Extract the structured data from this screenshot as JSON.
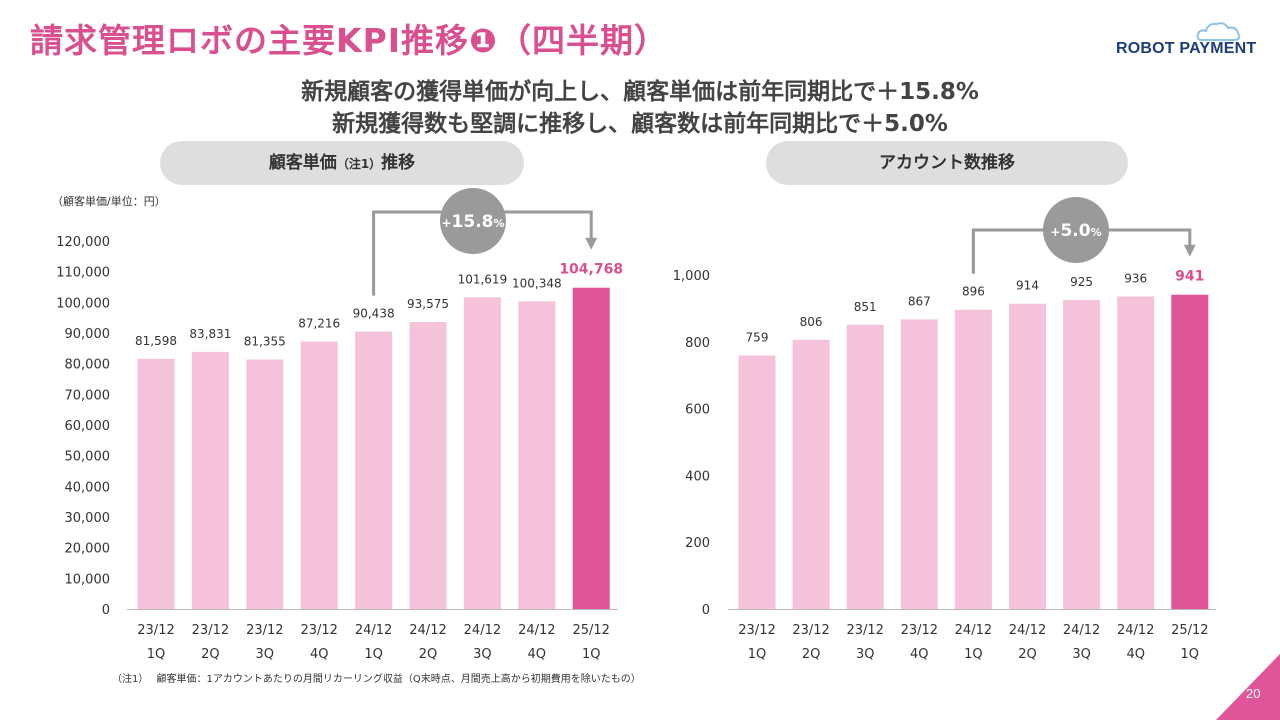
{
  "title_main": "請求管理ロボの主要KPI推移",
  "title_num": "❶",
  "title_suffix": "（四半期）",
  "logo": {
    "text": "ROBOT PAYMENT"
  },
  "subtitle_line1": "新規顧客の獲得単価が向上し、顧客単価は前年同期比で＋15.8%",
  "subtitle_line2": "新規獲得数も堅調に推移し、顧客数は前年同期比で＋5.0%",
  "left_panel": {
    "title": "顧客単価",
    "note_ref": "（注1）",
    "title_suffix": "推移"
  },
  "right_panel": {
    "title": "アカウント数推移"
  },
  "unit_label": "（顧客単価/単位：円）",
  "footnote": "（注1）　 顧客単価：1アカウントあたりの月間リカーリング収益（Q末時点、月間売上高から初期費用を除いたもの）",
  "page_number": "20",
  "colors": {
    "accent": "#d94f8f",
    "bar_light": "#f4c3d9",
    "bar_highlight": "#e05597",
    "pill_bg": "#dedede",
    "bracket": "#9a9a9a",
    "circle": "#9a9a9a"
  },
  "chart_data": [
    {
      "type": "bar",
      "title": "顧客単価（注1）推移",
      "ylabel": "（顧客単価/単位：円）",
      "categories": [
        "23/12\n1Q",
        "23/12\n2Q",
        "23/12\n3Q",
        "23/12\n4Q",
        "24/12\n1Q",
        "24/12\n2Q",
        "24/12\n3Q",
        "24/12\n4Q",
        "25/12\n1Q"
      ],
      "values": [
        81598,
        83831,
        81355,
        87216,
        90438,
        93575,
        101619,
        100348,
        104768
      ],
      "value_labels": [
        "81,598",
        "83,831",
        "81,355",
        "87,216",
        "90,438",
        "93,575",
        "101,619",
        "100,348",
        "104,768"
      ],
      "highlight_index": 8,
      "ylim": [
        0,
        120000
      ],
      "yticks": [
        0,
        10000,
        20000,
        30000,
        40000,
        50000,
        60000,
        70000,
        80000,
        90000,
        100000,
        110000,
        120000
      ],
      "ytick_labels": [
        "0",
        "10,000",
        "20,000",
        "30,000",
        "40,000",
        "50,000",
        "60,000",
        "70,000",
        "80,000",
        "90,000",
        "100,000",
        "110,000",
        "120,000"
      ],
      "grid": false,
      "annotation": {
        "text_prefix": "+",
        "text_main": "15.8",
        "text_unit": "%",
        "from_index": 4,
        "to_index": 8
      }
    },
    {
      "type": "bar",
      "title": "アカウント数推移",
      "categories": [
        "23/12\n1Q",
        "23/12\n2Q",
        "23/12\n3Q",
        "23/12\n4Q",
        "24/12\n1Q",
        "24/12\n2Q",
        "24/12\n3Q",
        "24/12\n4Q",
        "25/12\n1Q"
      ],
      "values": [
        759,
        806,
        851,
        867,
        896,
        914,
        925,
        936,
        941
      ],
      "value_labels": [
        "759",
        "806",
        "851",
        "867",
        "896",
        "914",
        "925",
        "936",
        "941"
      ],
      "highlight_index": 8,
      "ylim": [
        0,
        1000
      ],
      "yticks": [
        0,
        200,
        400,
        600,
        800,
        1000
      ],
      "ytick_labels": [
        "0",
        "200",
        "400",
        "600",
        "800",
        "1,000"
      ],
      "grid": false,
      "annotation": {
        "text_prefix": "+",
        "text_main": "5.0",
        "text_unit": "%",
        "from_index": 4,
        "to_index": 8
      }
    }
  ]
}
